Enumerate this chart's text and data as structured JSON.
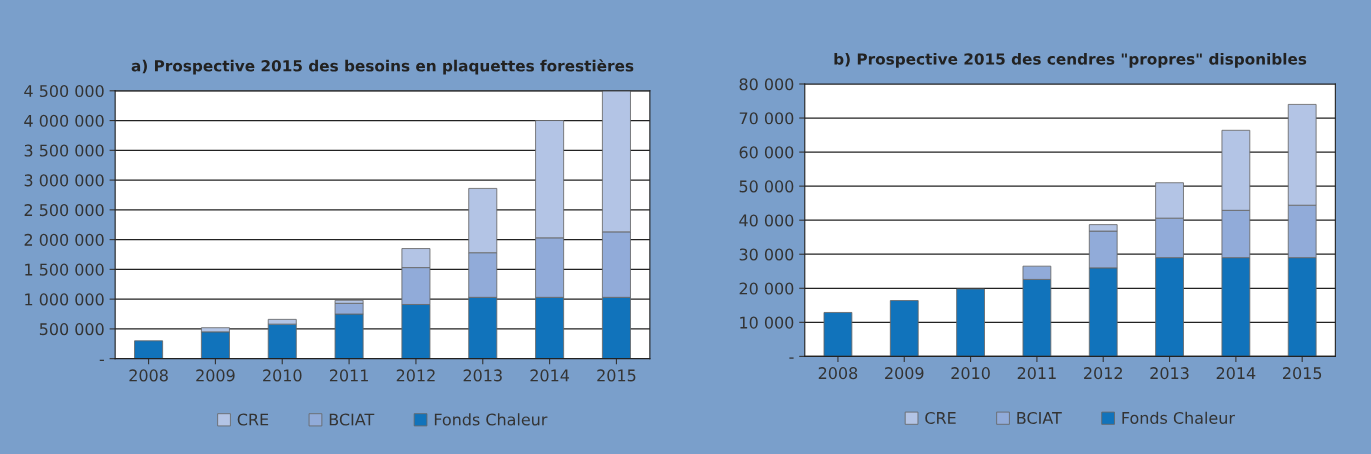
{
  "chart_data": [
    {
      "type": "bar",
      "stacked": true,
      "title": "a) Prospective 2015 des besoins en plaquettes forestières",
      "categories": [
        "2008",
        "2009",
        "2010",
        "2011",
        "2012",
        "2013",
        "2014",
        "2015"
      ],
      "series": [
        {
          "name": "Fonds Chaleur",
          "color": "#1173bb",
          "values": [
            300000,
            450000,
            580000,
            750000,
            910000,
            1030000,
            1030000,
            1030000
          ]
        },
        {
          "name": "BCIAT",
          "color": "#91abd9",
          "values": [
            0,
            0,
            0,
            180000,
            620000,
            750000,
            1000000,
            1100000
          ]
        },
        {
          "name": "CRE",
          "color": "#b3c4e5",
          "values": [
            0,
            70000,
            80000,
            50000,
            320000,
            1080000,
            1970000,
            2370000
          ]
        }
      ],
      "ylim": [
        0,
        4500000
      ],
      "yticks": [
        {
          "value": 0,
          "label": "-"
        },
        {
          "value": 500000,
          "label": "500 000"
        },
        {
          "value": 1000000,
          "label": "1 000 000"
        },
        {
          "value": 1500000,
          "label": "1 500 000"
        },
        {
          "value": 2000000,
          "label": "2 000 000"
        },
        {
          "value": 2500000,
          "label": "2 500 000"
        },
        {
          "value": 3000000,
          "label": "3 000 000"
        },
        {
          "value": 3500000,
          "label": "3 500 000"
        },
        {
          "value": 4000000,
          "label": "4 000 000"
        },
        {
          "value": 4500000,
          "label": "4 500 000"
        }
      ],
      "grid": "y",
      "legend": "bottom"
    },
    {
      "type": "bar",
      "stacked": true,
      "title": "b) Prospective 2015 des cendres \"propres\" disponibles",
      "categories": [
        "2008",
        "2009",
        "2010",
        "2011",
        "2012",
        "2013",
        "2014",
        "2015"
      ],
      "series": [
        {
          "name": "Fonds Chaleur",
          "color": "#1173bb",
          "values": [
            12900,
            16400,
            19800,
            22600,
            26000,
            29000,
            29000,
            29000
          ]
        },
        {
          "name": "BCIAT",
          "color": "#91abd9",
          "values": [
            0,
            0,
            0,
            3900,
            10800,
            11600,
            13900,
            15400
          ]
        },
        {
          "name": "CRE",
          "color": "#b3c4e5",
          "values": [
            0,
            0,
            0,
            0,
            1900,
            10400,
            23500,
            29600
          ]
        }
      ],
      "ylim": [
        0,
        80000
      ],
      "yticks": [
        {
          "value": 0,
          "label": "-"
        },
        {
          "value": 10000,
          "label": "10 000"
        },
        {
          "value": 20000,
          "label": "20 000"
        },
        {
          "value": 30000,
          "label": "30 000"
        },
        {
          "value": 40000,
          "label": "40 000"
        },
        {
          "value": 50000,
          "label": "50 000"
        },
        {
          "value": 60000,
          "label": "60 000"
        },
        {
          "value": 70000,
          "label": "70 000"
        },
        {
          "value": 80000,
          "label": "80 000"
        }
      ],
      "grid": "y",
      "legend": "bottom"
    }
  ]
}
